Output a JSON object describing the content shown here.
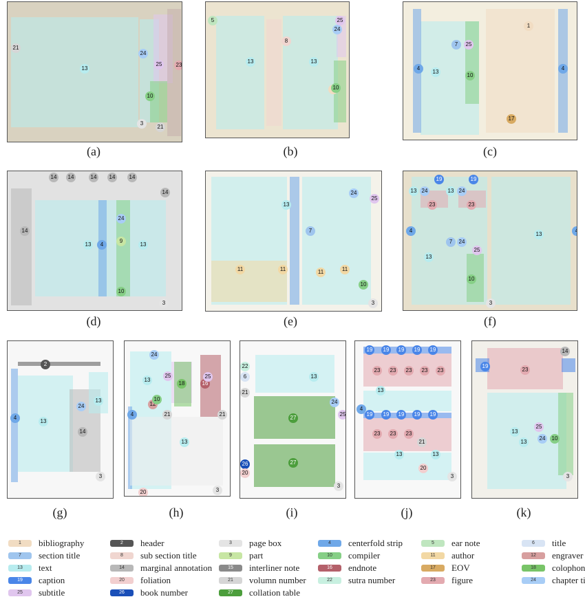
{
  "figure": {
    "panel_captions": [
      "(a)",
      "(b)",
      "(c)",
      "(d)",
      "(e)",
      "(f)",
      "(g)",
      "(h)",
      "(i)",
      "(j)",
      "(k)"
    ]
  },
  "panels": [
    {
      "id": "a",
      "bg": "#d9d2c0",
      "badges": [
        "21",
        "13",
        "24",
        "25",
        "23",
        "10",
        "3",
        "21"
      ]
    },
    {
      "id": "b",
      "bg": "#ece4d0",
      "badges": [
        "5",
        "13",
        "8",
        "13",
        "24",
        "25",
        "1",
        "10"
      ]
    },
    {
      "id": "c",
      "bg": "#f3eedf",
      "badges": [
        "1",
        "4",
        "7",
        "13",
        "25",
        "10",
        "4",
        "17"
      ]
    },
    {
      "id": "d",
      "bg": "#e2e2e2",
      "badges": [
        "14",
        "14",
        "14",
        "14",
        "14",
        "14",
        "14",
        "4",
        "13",
        "24",
        "9",
        "13",
        "10",
        "3"
      ]
    },
    {
      "id": "e",
      "bg": "#f4f2ea",
      "badges": [
        "13",
        "7",
        "25",
        "24",
        "11",
        "11",
        "11",
        "11",
        "10",
        "3"
      ]
    },
    {
      "id": "f",
      "bg": "#e8e0cc",
      "badges": [
        "19",
        "19",
        "13",
        "24",
        "13",
        "24",
        "23",
        "23",
        "4",
        "7",
        "24",
        "13",
        "25",
        "13",
        "10",
        "4",
        "3"
      ]
    },
    {
      "id": "g",
      "bg": "#f7f7f7",
      "badges": [
        "2",
        "4",
        "13",
        "24",
        "14",
        "13",
        "3"
      ]
    },
    {
      "id": "h",
      "bg": "#f8f8f8",
      "badges": [
        "24",
        "25",
        "13",
        "18",
        "12",
        "10",
        "16",
        "25",
        "4",
        "21",
        "21",
        "13",
        "20",
        "3"
      ]
    },
    {
      "id": "i",
      "bg": "#f8f8f8",
      "badges": [
        "22",
        "6",
        "21",
        "13",
        "27",
        "24",
        "25",
        "27",
        "26",
        "20",
        "3"
      ]
    },
    {
      "id": "j",
      "bg": "#f8f8f8",
      "badges": [
        "19",
        "19",
        "19",
        "19",
        "19",
        "23",
        "23",
        "23",
        "23",
        "23",
        "13",
        "4",
        "19",
        "19",
        "19",
        "19",
        "19",
        "23",
        "23",
        "23",
        "13",
        "21",
        "13",
        "20",
        "3"
      ]
    },
    {
      "id": "k",
      "bg": "#f2f0ea",
      "badges": [
        "14",
        "23",
        "19",
        "13",
        "25",
        "24",
        "10",
        "13",
        "3"
      ]
    }
  ],
  "legend": [
    {
      "num": "1",
      "label": "bibliography",
      "color": "#f1dcc2"
    },
    {
      "num": "2",
      "label": "header",
      "color": "#555555"
    },
    {
      "num": "3",
      "label": "page box",
      "color": "#e4e4e4"
    },
    {
      "num": "4",
      "label": "centerfold strip",
      "color": "#6fa8e8"
    },
    {
      "num": "5",
      "label": "ear note",
      "color": "#bfe6bf"
    },
    {
      "num": "6",
      "label": "title",
      "color": "#d8e4f4"
    },
    {
      "num": "7",
      "label": "section title",
      "color": "#9fc5ee"
    },
    {
      "num": "8",
      "label": "sub section title",
      "color": "#f0d6d0"
    },
    {
      "num": "9",
      "label": "part",
      "color": "#c7e6a3"
    },
    {
      "num": "10",
      "label": "compiler",
      "color": "#86cf86"
    },
    {
      "num": "11",
      "label": "author",
      "color": "#f2d8a4"
    },
    {
      "num": "12",
      "label": "engraver",
      "color": "#d79f9f"
    },
    {
      "num": "13",
      "label": "text",
      "color": "#b7ecef"
    },
    {
      "num": "14",
      "label": "marginal annotation",
      "color": "#b8b8b8"
    },
    {
      "num": "15",
      "label": "interliner note",
      "color": "#8a8a8a"
    },
    {
      "num": "16",
      "label": "endnote",
      "color": "#b4606a"
    },
    {
      "num": "17",
      "label": "EOV",
      "color": "#d8aa62"
    },
    {
      "num": "18",
      "label": "colophon",
      "color": "#78c468"
    },
    {
      "num": "19",
      "label": "caption",
      "color": "#4a86e8"
    },
    {
      "num": "20",
      "label": "foliation",
      "color": "#f2cfcf"
    },
    {
      "num": "21",
      "label": "volumn number",
      "color": "#d6d6d6"
    },
    {
      "num": "22",
      "label": "sutra number",
      "color": "#c8f0e0"
    },
    {
      "num": "23",
      "label": "figure",
      "color": "#e3aab0"
    },
    {
      "num": "24",
      "label": "chapter title",
      "color": "#a8cdf6"
    },
    {
      "num": "25",
      "label": "subtitle",
      "color": "#e0c6ee"
    },
    {
      "num": "26",
      "label": "book number",
      "color": "#1a4fb8"
    },
    {
      "num": "27",
      "label": "collation table",
      "color": "#4c9e3c"
    }
  ]
}
